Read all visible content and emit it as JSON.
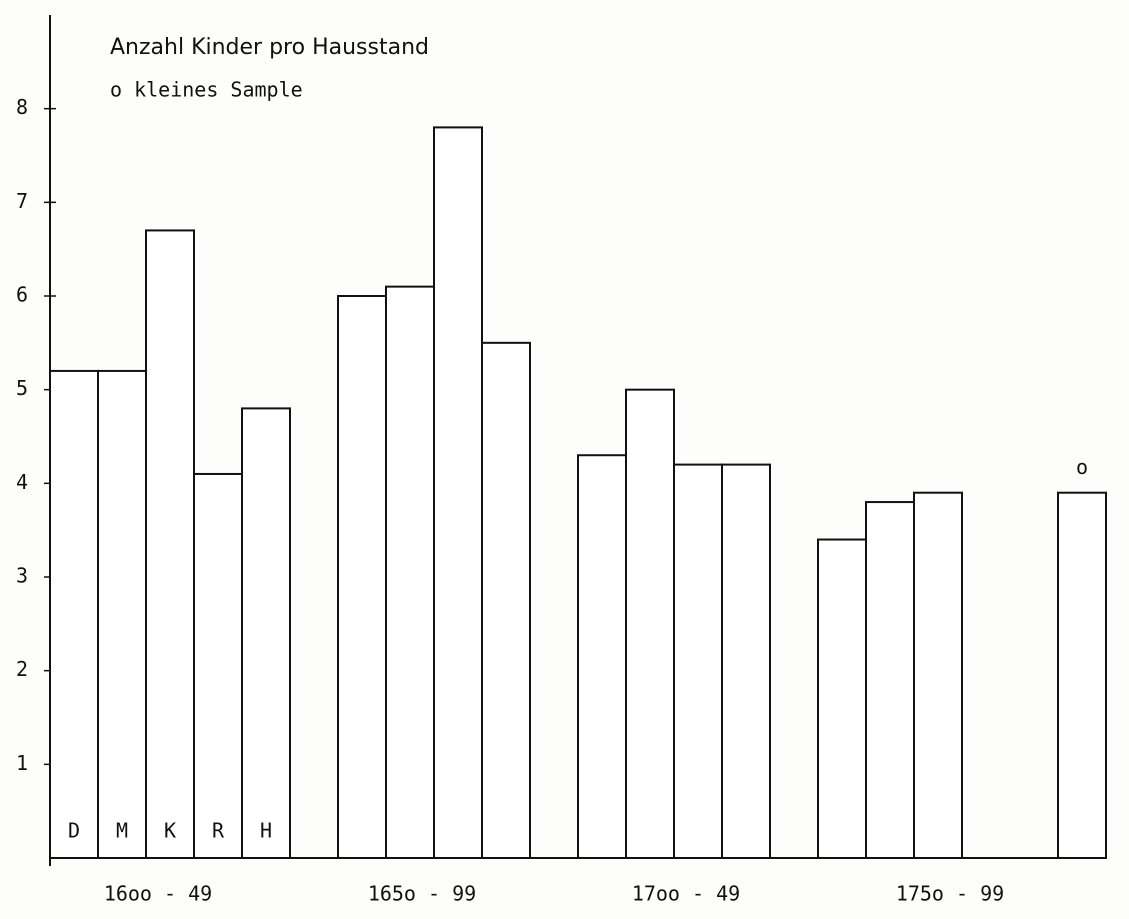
{
  "chart_data": {
    "type": "bar",
    "title": "Anzahl Kinder pro Hausstand",
    "legend_text": "o kleines Sample",
    "categories": [
      "D",
      "M",
      "K",
      "R",
      "H",
      null,
      null,
      null,
      null,
      null,
      null,
      null,
      null,
      null,
      null,
      null,
      null,
      null,
      null,
      null,
      null,
      null
    ],
    "values": [
      5.2,
      5.2,
      6.7,
      4.1,
      4.8,
      null,
      6.0,
      6.1,
      7.8,
      5.5,
      null,
      4.3,
      5.0,
      4.2,
      4.2,
      null,
      3.4,
      3.8,
      3.9,
      null,
      null,
      3.9
    ],
    "markers": [
      null,
      null,
      null,
      null,
      null,
      null,
      null,
      null,
      null,
      null,
      null,
      null,
      null,
      null,
      null,
      null,
      null,
      null,
      null,
      null,
      null,
      "o"
    ],
    "groups": [
      "16oo - 49",
      "165o - 99",
      "17oo - 49",
      "175o - 99"
    ],
    "color": "#ffffff",
    "ylim": [
      0,
      9
    ],
    "yticks": [
      1,
      2,
      3,
      4,
      5,
      6,
      7,
      8
    ]
  }
}
